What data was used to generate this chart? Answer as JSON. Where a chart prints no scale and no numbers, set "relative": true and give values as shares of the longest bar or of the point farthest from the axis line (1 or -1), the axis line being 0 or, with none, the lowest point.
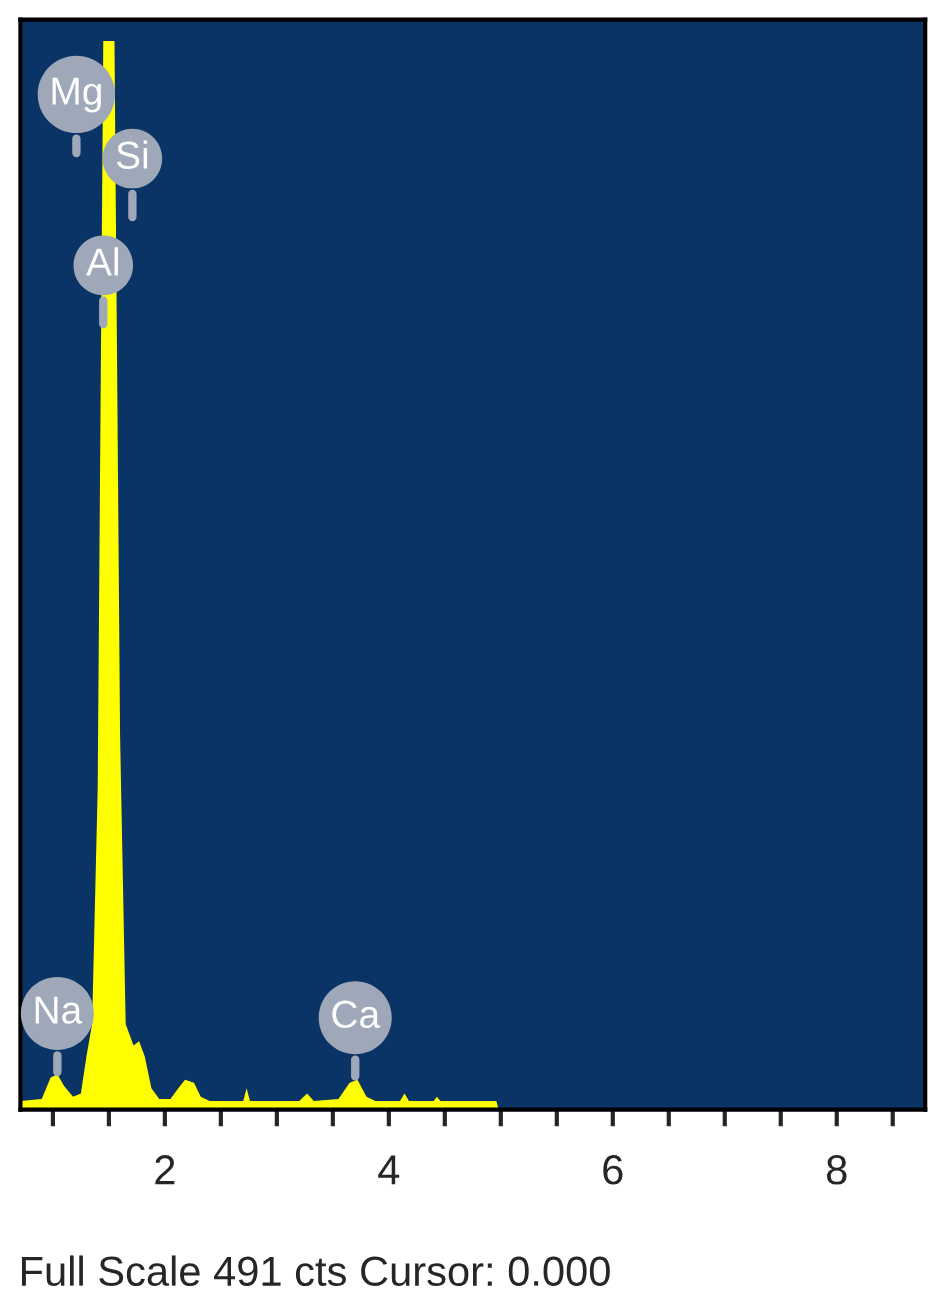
{
  "chart_data": {
    "type": "area",
    "relative": true,
    "x": [
      0.71,
      0.9,
      0.98,
      1.04,
      1.1,
      1.18,
      1.25,
      1.3,
      1.35,
      1.4,
      1.45,
      1.55,
      1.6,
      1.65,
      1.72,
      1.77,
      1.82,
      1.88,
      1.95,
      2.05,
      2.12,
      2.18,
      2.26,
      2.32,
      2.4,
      2.7,
      2.73,
      2.76,
      3.2,
      3.27,
      3.33,
      3.55,
      3.65,
      3.72,
      3.8,
      3.88,
      4.1,
      4.14,
      4.18,
      4.4,
      4.43,
      4.46,
      4.96,
      4.98,
      8.79
    ],
    "series": [
      {
        "color": "#ffff00",
        "values": [
          0.008,
          0.01,
          0.03,
          0.033,
          0.022,
          0.012,
          0.015,
          0.05,
          0.08,
          0.3,
          1.0,
          1.0,
          0.35,
          0.08,
          0.06,
          0.064,
          0.05,
          0.02,
          0.01,
          0.01,
          0.02,
          0.028,
          0.025,
          0.012,
          0.008,
          0.008,
          0.02,
          0.008,
          0.008,
          0.015,
          0.008,
          0.01,
          0.025,
          0.028,
          0.012,
          0.008,
          0.008,
          0.015,
          0.008,
          0.008,
          0.012,
          0.008,
          0.008,
          0,
          0
        ]
      }
    ],
    "xlim": [
      0.71,
      8.79
    ],
    "xticks": [
      {
        "value": 1,
        "label": null
      },
      {
        "value": 1.5,
        "label": null
      },
      2,
      {
        "value": 2.5,
        "label": null
      },
      {
        "value": 3,
        "label": null
      },
      {
        "value": 3.5,
        "label": null
      },
      4,
      {
        "value": 4.5,
        "label": null
      },
      {
        "value": 5,
        "label": null
      },
      {
        "value": 5.5,
        "label": null
      },
      6,
      {
        "value": 6.5,
        "label": null
      },
      {
        "value": 7,
        "label": null
      },
      {
        "value": 7.5,
        "label": null
      },
      8,
      {
        "value": 8.5,
        "label": null
      }
    ],
    "annotations": [
      {
        "text": "Mg",
        "x": 1.21,
        "y": 0.95
      },
      {
        "text": "Si",
        "x": 1.71,
        "y": 0.89
      },
      {
        "text": "Al",
        "x": 1.45,
        "y": 0.79
      },
      {
        "text": "Na",
        "x": 1.04,
        "y": 0.09
      },
      {
        "text": "Ca",
        "x": 3.7,
        "y": 0.086
      },
      "Full Scale 491 cts Cursor: 0.000"
    ]
  }
}
